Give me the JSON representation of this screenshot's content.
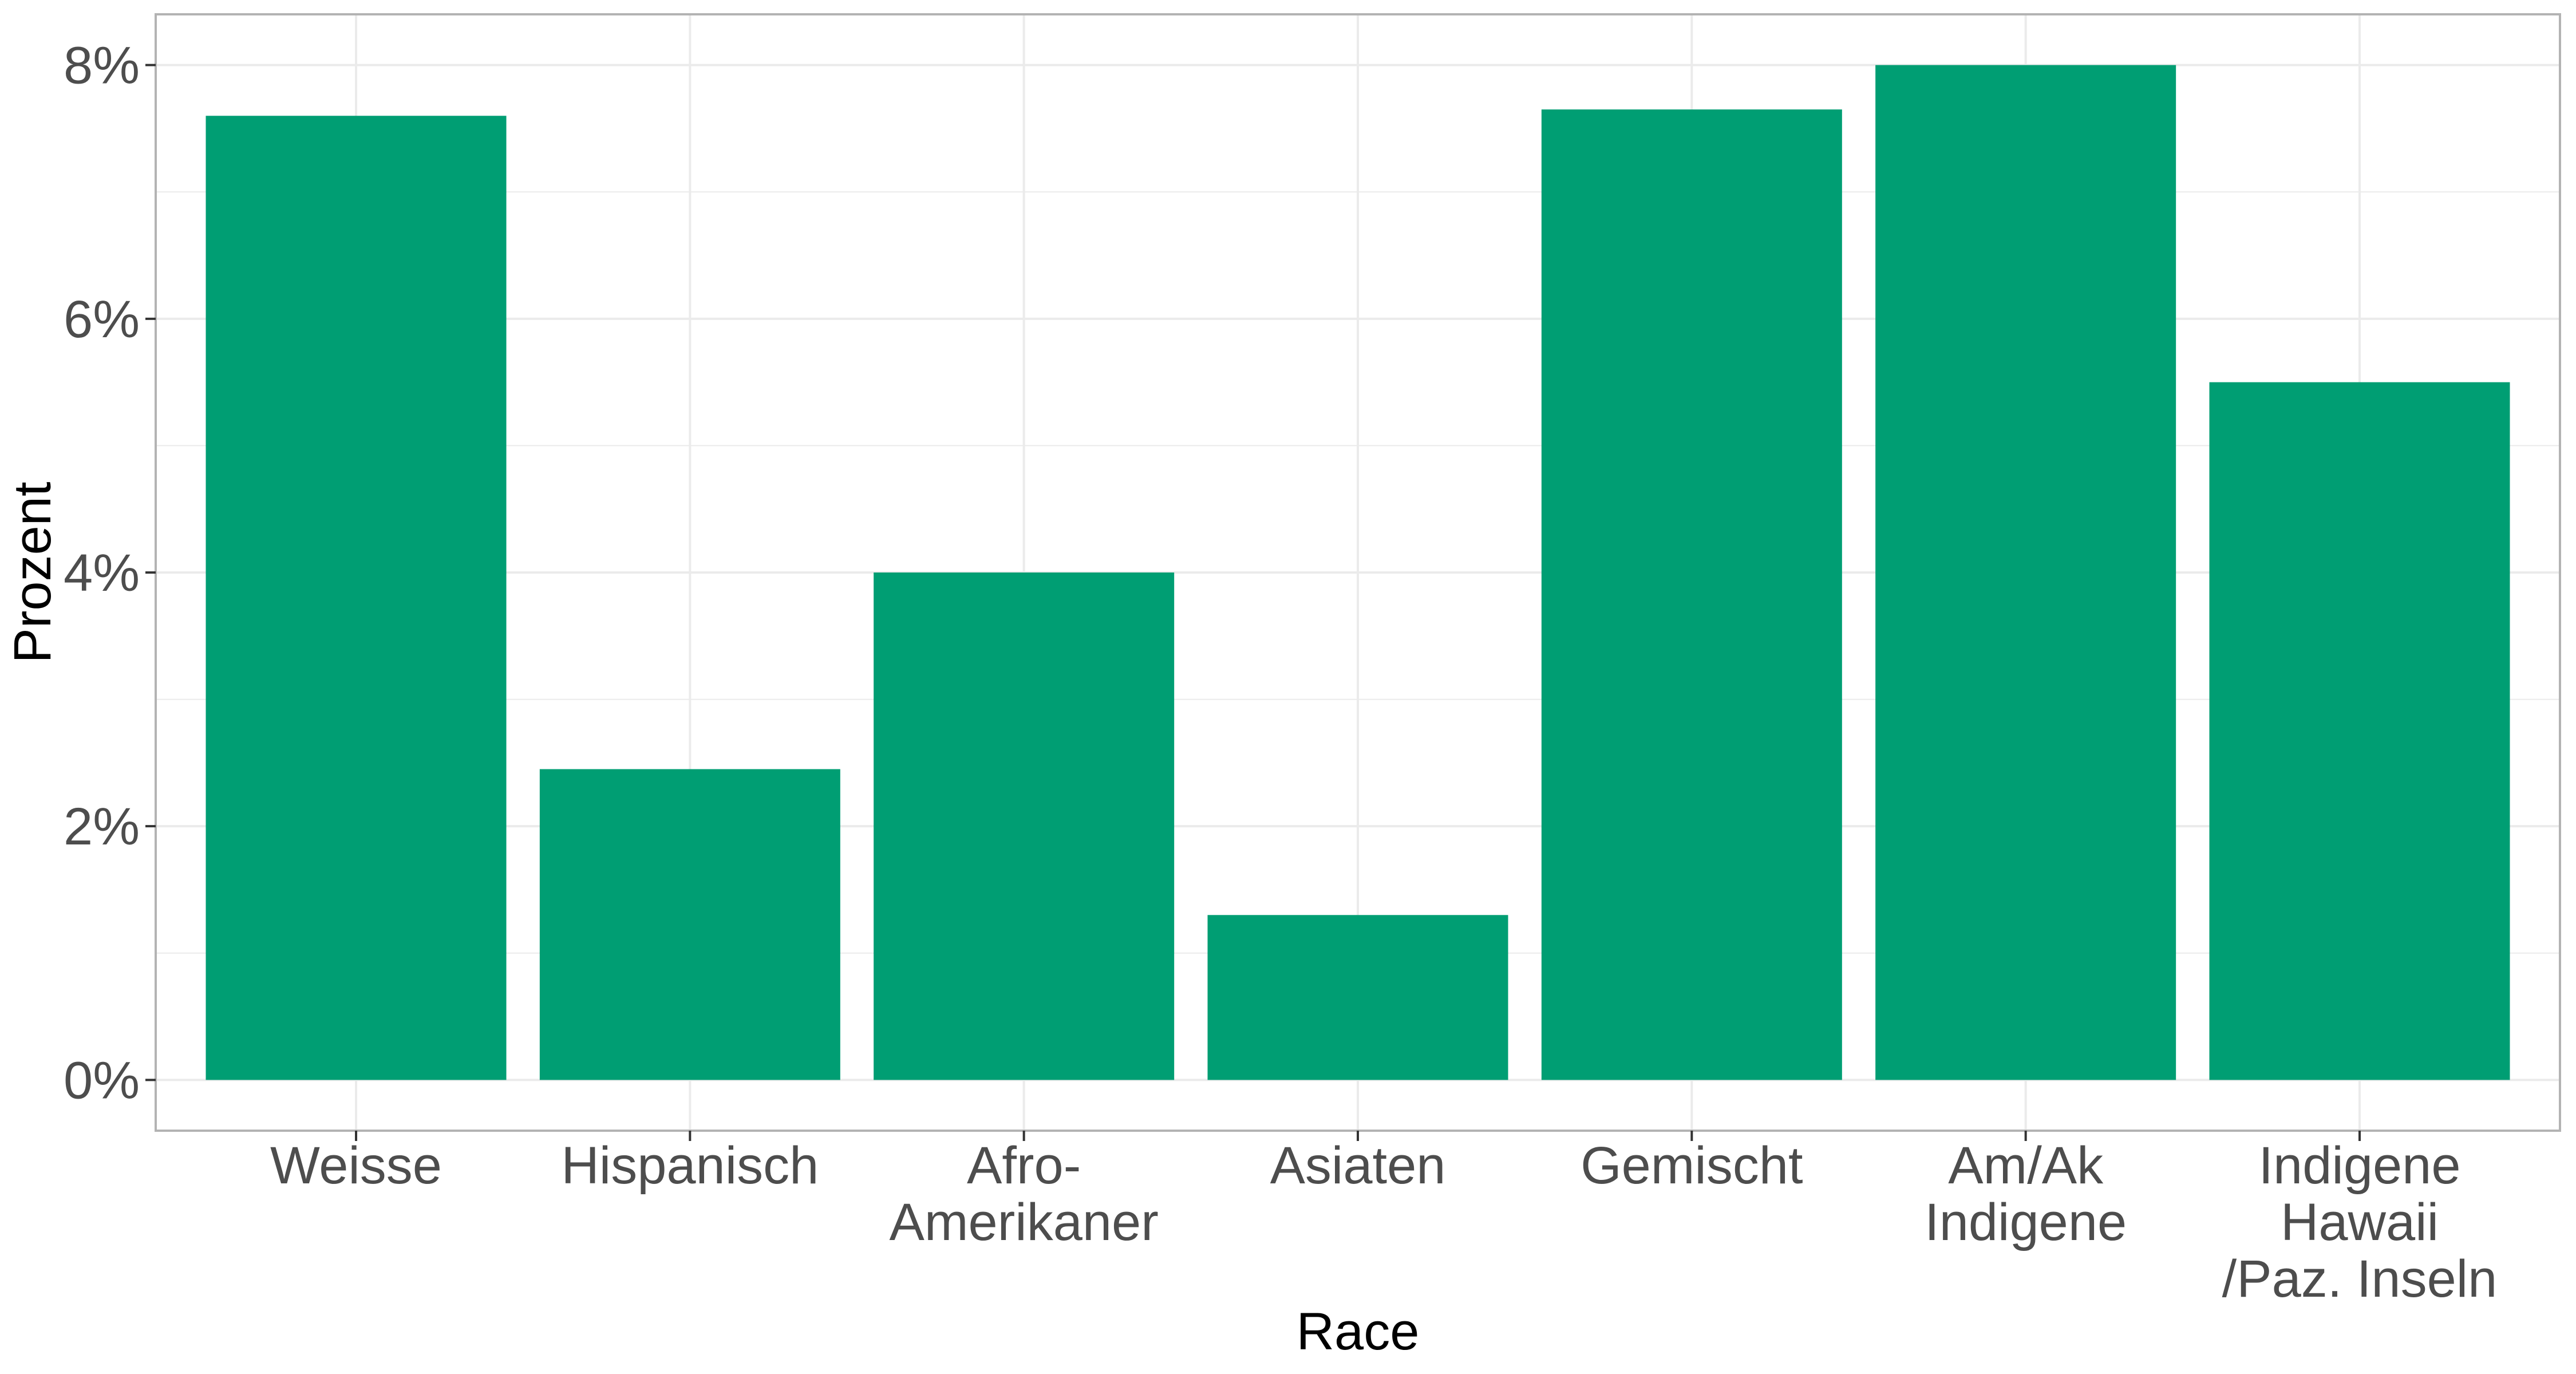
{
  "chart_data": {
    "type": "bar",
    "title": "",
    "xlabel": "Race",
    "ylabel": "Prozent",
    "categories": [
      [
        "Weisse"
      ],
      [
        "Hispanisch"
      ],
      [
        "Afro-",
        "Amerikaner"
      ],
      [
        "Asiaten"
      ],
      [
        "Gemischt"
      ],
      [
        "Am/Ak",
        "Indigene"
      ],
      [
        "Indigene",
        "Hawaii",
        "/Paz. Inseln"
      ]
    ],
    "values": [
      7.6,
      2.45,
      4.0,
      1.3,
      7.65,
      8.0,
      5.5
    ],
    "ylim": [
      -0.4,
      8.4
    ],
    "yticks": [
      0,
      2,
      4,
      6,
      8
    ],
    "ytick_labels": [
      "0%",
      "2%",
      "4%",
      "6%",
      "8%"
    ],
    "grid": true,
    "bar_color": "#009E73",
    "grid_color": "#ebebeb",
    "panel_border_color": "#b3b3b3"
  }
}
